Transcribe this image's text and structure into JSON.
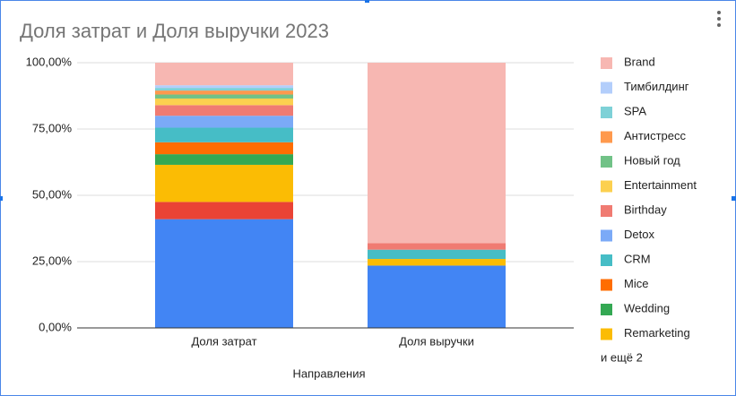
{
  "chart_data": {
    "type": "stacked_bar",
    "title": "Доля затрат и Доля выручки 2023",
    "x_label": "Направления",
    "categories": [
      "Доля затрат",
      "Доля выручки"
    ],
    "ylim": [
      0,
      100
    ],
    "yticks": [
      {
        "value": 0,
        "label": "0,00%"
      },
      {
        "value": 25,
        "label": "25,00%"
      },
      {
        "value": 50,
        "label": "50,00%"
      },
      {
        "value": 75,
        "label": "75,00%"
      },
      {
        "value": 100,
        "label": "100,00%"
      }
    ],
    "grid": true,
    "legend": "right",
    "legend_more": "и ещё 2",
    "series": [
      {
        "color": "#4285f4",
        "values": [
          41,
          23.5
        ]
      },
      {
        "color": "#ea4335",
        "values": [
          6.5,
          0
        ]
      },
      {
        "name": "Remarketing",
        "color": "#fbbc04",
        "values": [
          14,
          2.5
        ]
      },
      {
        "name": "Wedding",
        "color": "#34a853",
        "values": [
          4,
          0
        ]
      },
      {
        "name": "Mice",
        "color": "#ff6d01",
        "values": [
          4.5,
          0
        ]
      },
      {
        "name": "CRM",
        "color": "#46bdc6",
        "values": [
          5.5,
          3.5
        ]
      },
      {
        "name": "Detox",
        "color": "#7baaf7",
        "values": [
          4.5,
          0
        ]
      },
      {
        "name": "Birthday",
        "color": "#f07b72",
        "values": [
          4,
          2.5
        ]
      },
      {
        "name": "Entertainment",
        "color": "#fcd04f",
        "values": [
          2.5,
          0
        ]
      },
      {
        "name": "Новый год",
        "color": "#71c287",
        "values": [
          1.5,
          0
        ]
      },
      {
        "name": "Антистресс",
        "color": "#ff994d",
        "values": [
          1.5,
          0
        ]
      },
      {
        "name": "SPA",
        "color": "#7ed1d7",
        "values": [
          1,
          0
        ]
      },
      {
        "name": "Тимбилдинг",
        "color": "#b3cefb",
        "values": [
          1,
          0
        ]
      },
      {
        "name": "Brand",
        "color": "#f7b7b2",
        "values": [
          8.5,
          68
        ]
      }
    ]
  }
}
